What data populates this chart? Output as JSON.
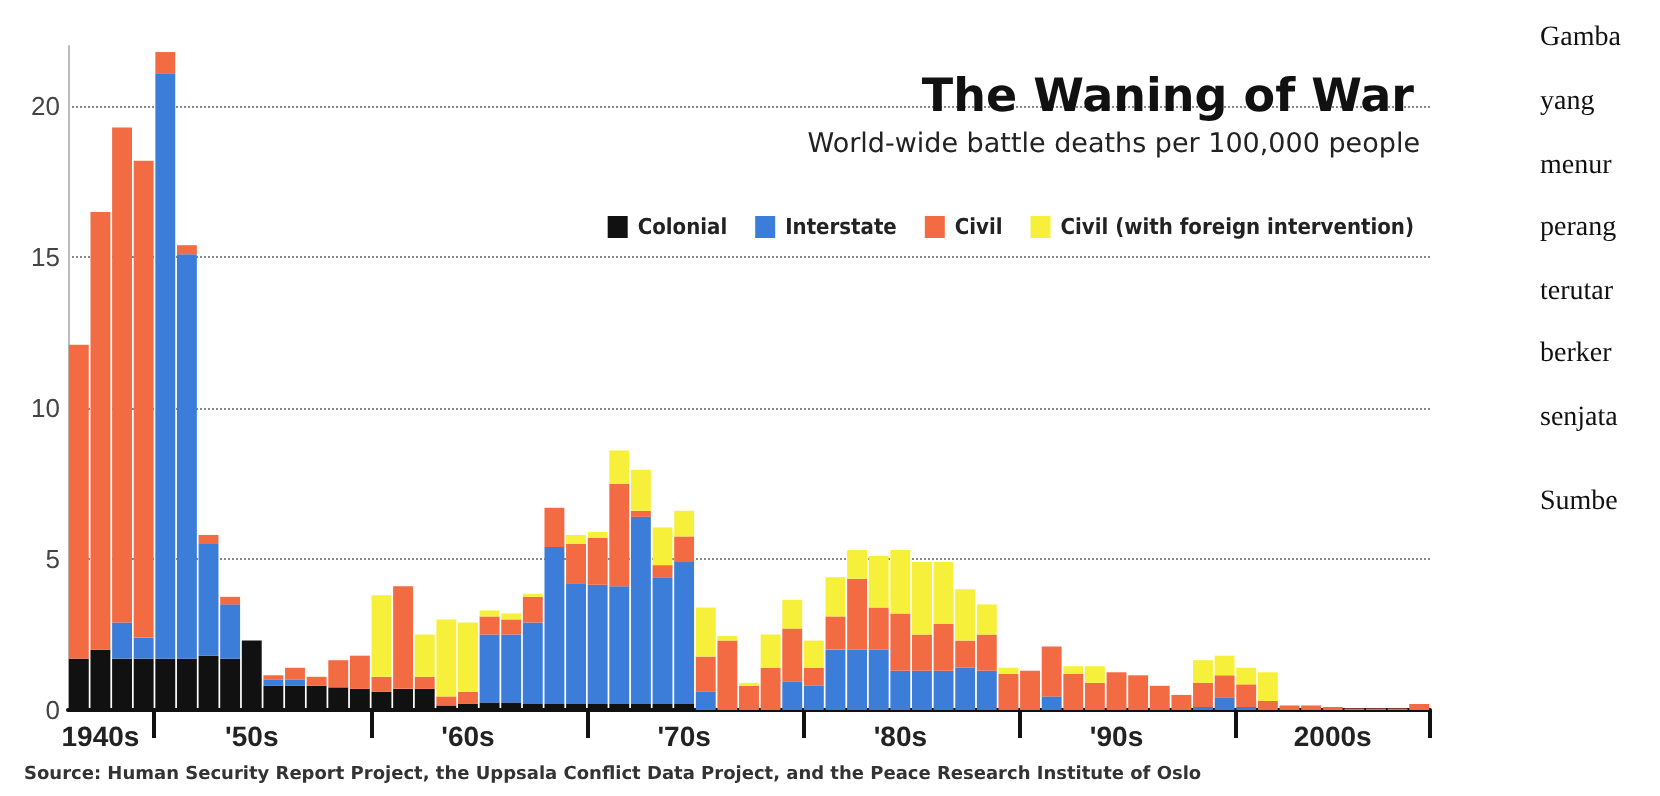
{
  "chart_data": {
    "type": "bar",
    "title": "The Waning of War",
    "subtitle": "World-wide battle deaths per 100,000 people",
    "categories": [
      null,
      "1940s",
      null,
      null,
      null,
      null,
      null,
      null,
      "'50s",
      null,
      null,
      null,
      null,
      null,
      null,
      null,
      null,
      null,
      "'60s",
      null,
      null,
      null,
      null,
      null,
      null,
      null,
      null,
      null,
      "'70s",
      null,
      null,
      null,
      null,
      null,
      null,
      null,
      null,
      null,
      "'80s",
      null,
      null,
      null,
      null,
      null,
      null,
      null,
      null,
      null,
      "'90s",
      null,
      null,
      null,
      null,
      null,
      null,
      null,
      null,
      null,
      "2000s",
      null,
      null,
      null,
      null
    ],
    "stacked": true,
    "series": [
      {
        "name": "Colonial",
        "color": "#111111",
        "values": [
          1.7,
          2.0,
          1.7,
          1.7,
          1.7,
          1.7,
          1.8,
          1.7,
          2.3,
          0.8,
          0.8,
          0.8,
          0.75,
          0.7,
          0.6,
          0.7,
          0.7,
          0.15,
          0.2,
          0.25,
          0.25,
          0.2,
          0.2,
          0.2,
          0.2,
          0.2,
          0.2,
          0.2,
          0.2,
          null,
          null,
          null,
          null,
          null,
          null,
          null,
          null,
          null,
          null,
          null,
          null,
          null,
          null,
          null,
          null,
          null,
          null,
          null,
          null,
          null,
          null,
          null,
          null,
          null,
          null,
          null,
          null,
          null,
          null,
          null,
          null,
          null,
          null
        ]
      },
      {
        "name": "Interstate",
        "color": "#3b7dd8",
        "values": [
          null,
          null,
          1.2,
          0.7,
          19.4,
          13.4,
          3.7,
          1.8,
          null,
          0.2,
          0.2,
          null,
          null,
          null,
          null,
          null,
          null,
          null,
          null,
          2.25,
          2.25,
          2.7,
          5.2,
          4.0,
          3.95,
          3.9,
          6.2,
          4.2,
          4.7,
          0.6,
          null,
          null,
          null,
          0.95,
          0.8,
          2.0,
          2.0,
          2.0,
          1.3,
          1.3,
          1.3,
          1.4,
          1.3,
          null,
          null,
          0.45,
          null,
          null,
          null,
          null,
          null,
          null,
          0.1,
          0.4,
          0.1,
          null,
          null,
          null,
          null,
          null,
          null,
          null,
          null
        ]
      },
      {
        "name": "Civil",
        "color": "#f26b43",
        "values": [
          10.4,
          14.5,
          16.4,
          15.8,
          0.7,
          0.3,
          0.3,
          0.25,
          null,
          0.15,
          0.4,
          0.3,
          0.9,
          1.1,
          0.5,
          3.4,
          0.4,
          0.3,
          0.4,
          0.6,
          0.5,
          0.85,
          1.3,
          1.3,
          1.55,
          3.4,
          0.2,
          0.4,
          0.85,
          1.17,
          2.3,
          0.8,
          1.4,
          1.75,
          0.6,
          1.1,
          2.35,
          1.4,
          1.9,
          1.2,
          1.55,
          0.9,
          1.2,
          1.2,
          1.3,
          1.65,
          1.2,
          0.9,
          1.25,
          1.15,
          0.8,
          0.5,
          0.8,
          0.75,
          0.75,
          0.3,
          0.15,
          0.15,
          0.1,
          0.05,
          0.05,
          0.05,
          0.2
        ]
      },
      {
        "name": "Civil (with foreign intervention)",
        "color": "#f7f03b",
        "values": [
          null,
          null,
          null,
          null,
          null,
          null,
          null,
          null,
          null,
          null,
          null,
          null,
          null,
          null,
          2.7,
          null,
          1.4,
          2.55,
          2.3,
          0.2,
          0.2,
          0.1,
          null,
          0.3,
          0.2,
          1.1,
          1.36,
          1.25,
          0.85,
          1.63,
          0.15,
          0.1,
          1.1,
          0.95,
          0.9,
          1.3,
          0.95,
          1.7,
          2.1,
          2.4,
          2.05,
          1.7,
          1.0,
          0.2,
          null,
          null,
          0.25,
          0.55,
          null,
          null,
          null,
          null,
          0.75,
          0.65,
          0.55,
          0.95,
          null,
          null,
          null,
          null,
          null,
          null,
          null
        ]
      }
    ],
    "ylim": [
      0,
      22
    ],
    "yticks": [
      0,
      5,
      10,
      15,
      20
    ],
    "grid": "y",
    "legend": "top right",
    "annotations": [
      "Source: Human Security Report Project, the Uppsala Conflict Data Project, and the Peace Research Institute of Oslo",
      "Gamba",
      "yang",
      "menur",
      "perang",
      "terutar",
      "berker",
      "senjata",
      "Sumbe"
    ]
  }
}
